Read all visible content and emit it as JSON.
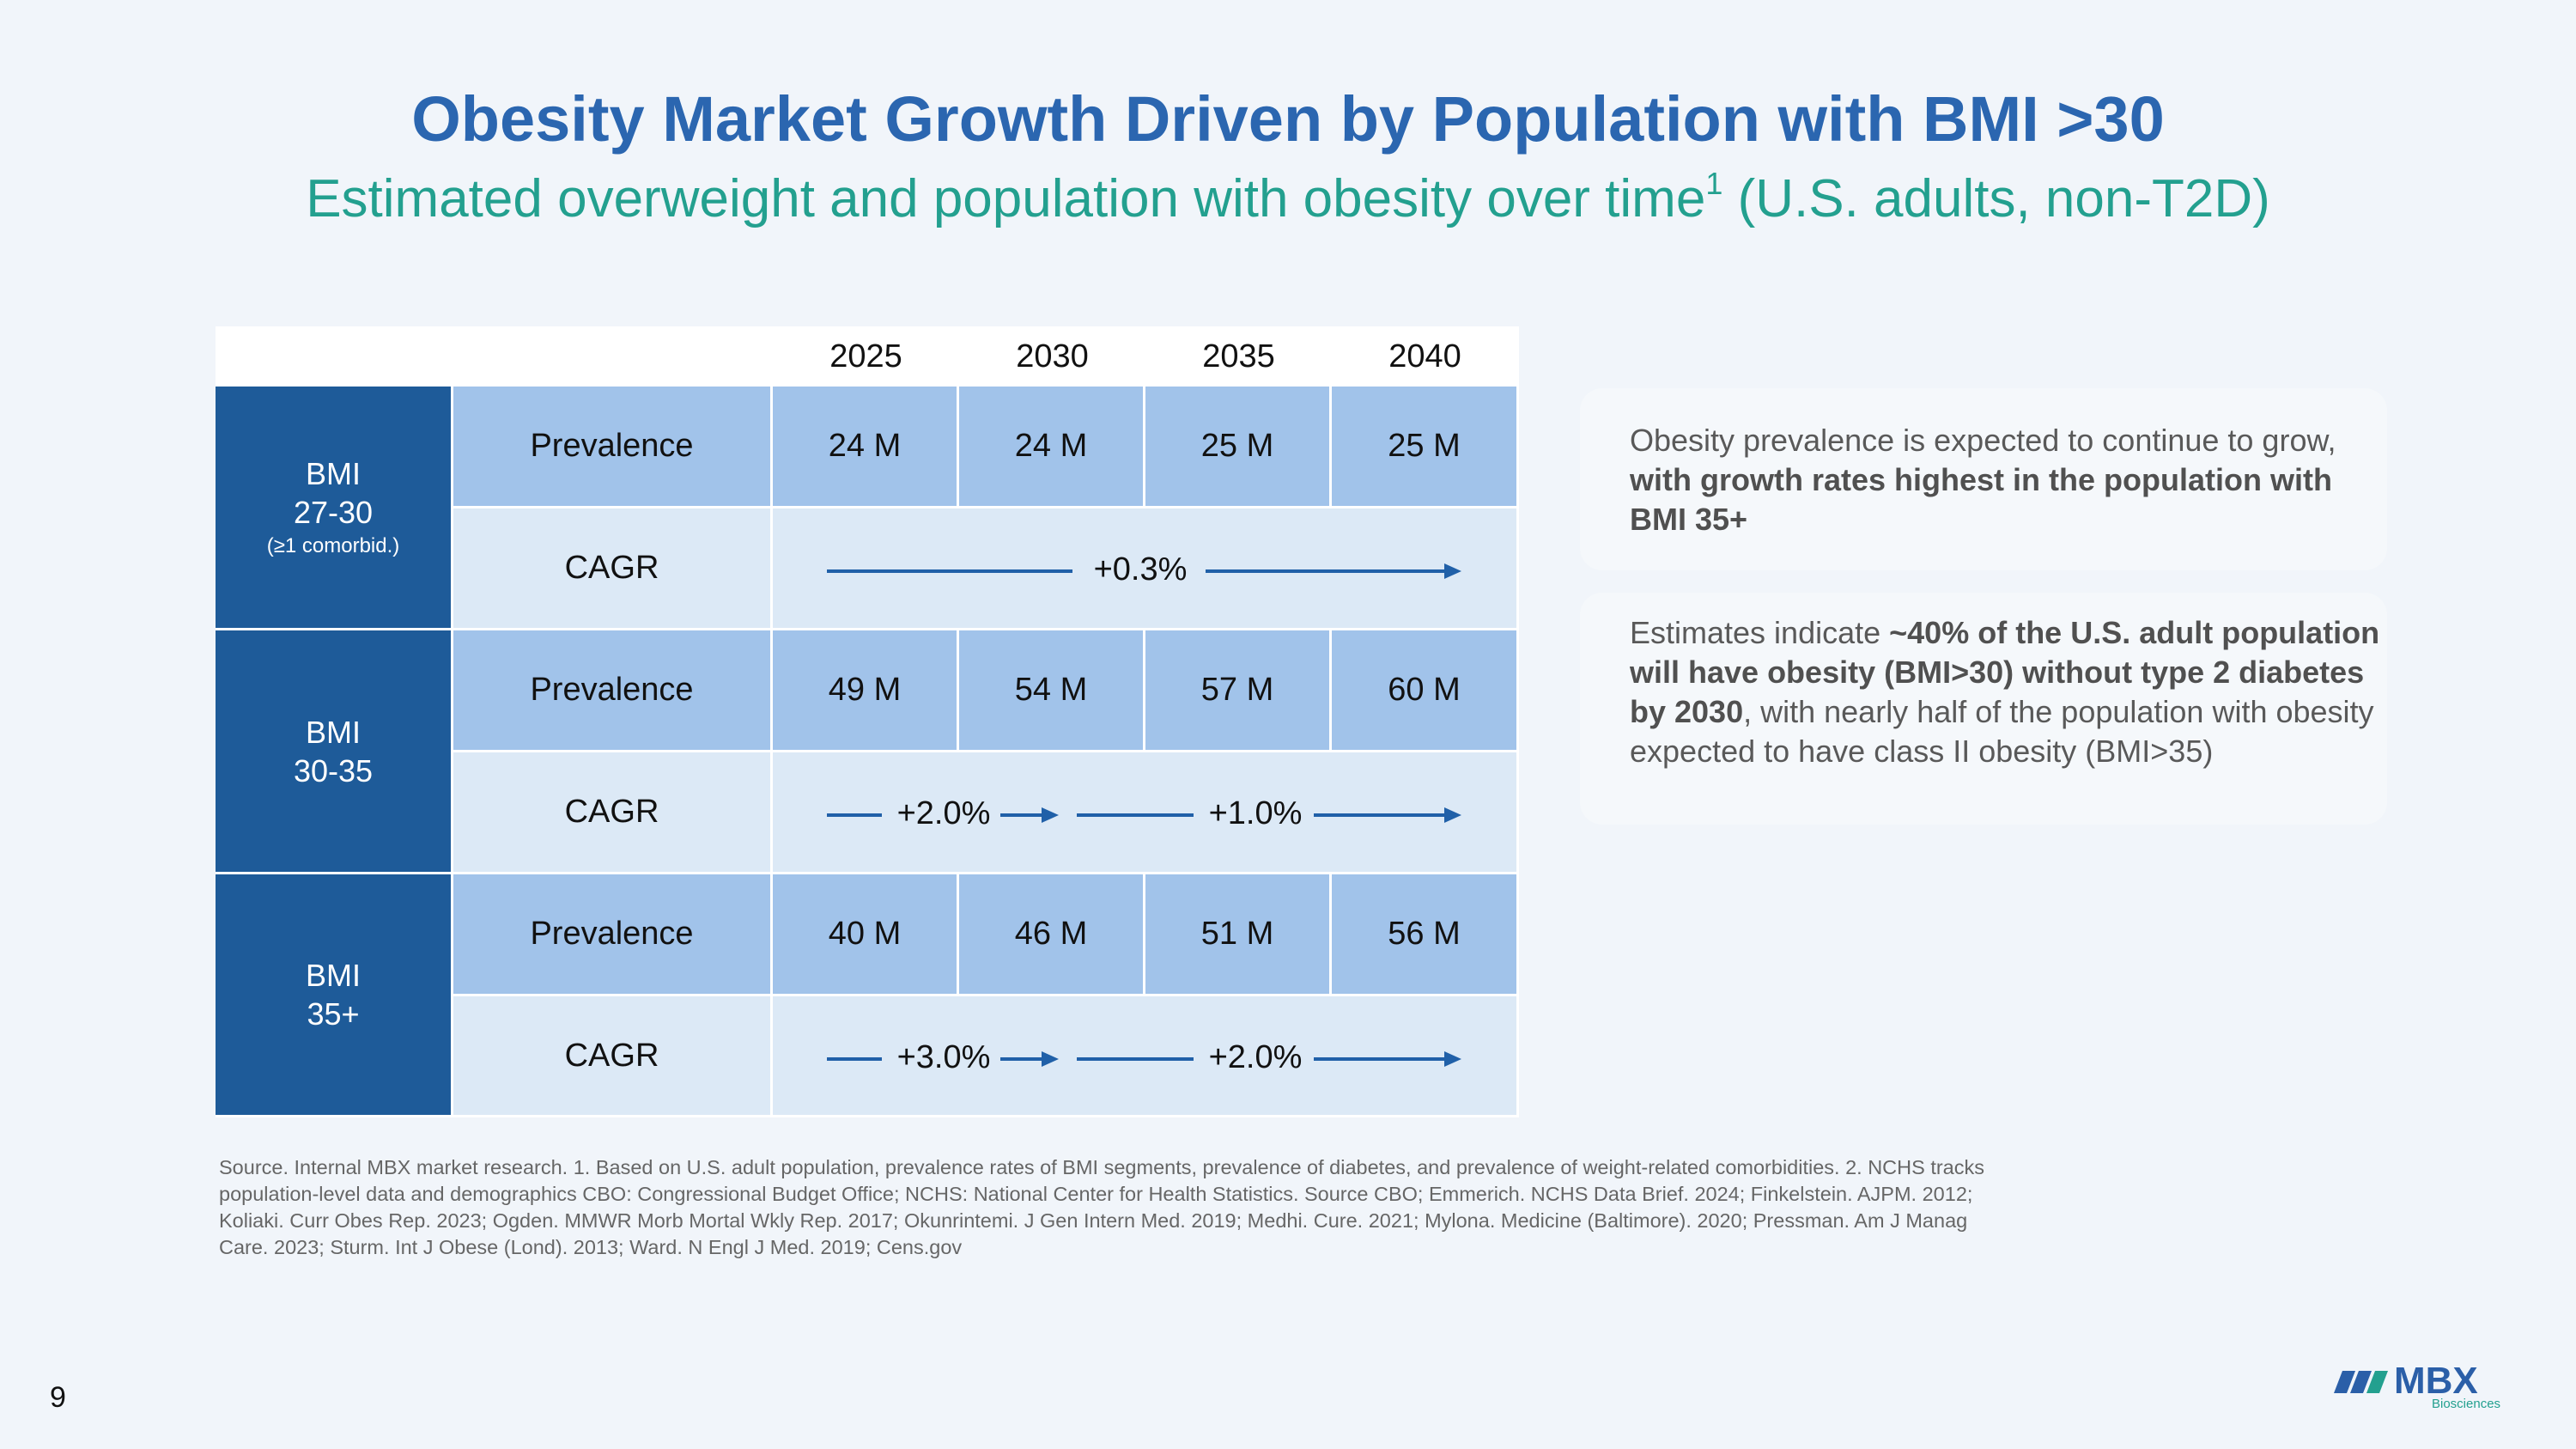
{
  "title": "Obesity Market Growth Driven by Population with BMI >30",
  "subtitle": {
    "main": "Estimated overweight and population with obesity over time",
    "sup": "1",
    "tail": " (U.S. adults, non-T2D)"
  },
  "table": {
    "years": [
      "2025",
      "2030",
      "2035",
      "2040"
    ],
    "groups": [
      {
        "label_line1": "BMI",
        "label_line2": "27-30",
        "label_line3": "(≥1 comorbid.)",
        "prevalence_label": "Prevalence",
        "prevalence": [
          "24 M",
          "24 M",
          "25 M",
          "25 M"
        ],
        "cagr_label": "CAGR",
        "cagr": [
          "+0.3%"
        ]
      },
      {
        "label_line1": "BMI",
        "label_line2": "30-35",
        "prevalence_label": "Prevalence",
        "prevalence": [
          "49 M",
          "54 M",
          "57 M",
          "60 M"
        ],
        "cagr_label": "CAGR",
        "cagr": [
          "+2.0%",
          "+1.0%"
        ]
      },
      {
        "label_line1": "BMI",
        "label_line2": "35+",
        "prevalence_label": "Prevalence",
        "prevalence": [
          "40 M",
          "46 M",
          "51 M",
          "56 M"
        ],
        "cagr_label": "CAGR",
        "cagr": [
          "+3.0%",
          "+2.0%"
        ]
      }
    ]
  },
  "callouts": [
    {
      "t1": "Obesity prevalence is expected to continue to grow, ",
      "b1": "with growth rates highest in the population with BMI 35+"
    },
    {
      "t1": "Estimates indicate ",
      "b1": "~40% of the U.S. adult population will have obesity (BMI>30) without type 2 diabetes by 2030",
      "t2": ", with nearly half of the population with obesity expected to have class II obesity (BMI>35)"
    }
  ],
  "source": "Source. Internal MBX market research. 1. Based on U.S. adult population, prevalence rates of BMI segments, prevalence of diabetes, and prevalence of weight-related comorbidities. 2. NCHS tracks population-level data and demographics  CBO: Congressional Budget Office; NCHS: National Center for Health Statistics. Source CBO; Emmerich. NCHS Data Brief. 2024; Finkelstein. AJPM. 2012; Koliaki. Curr Obes Rep. 2023; Ogden. MMWR Morb Mortal Wkly Rep. 2017;  Okunrintemi. J Gen Intern Med. 2019; Medhi. Cure. 2021; Mylona. Medicine (Baltimore). 2020; Pressman. Am J Manag Care. 2023; Sturm. Int J Obese (Lond). 2013; Ward. N Engl J Med. 2019; Cens.gov",
  "page_number": "9",
  "logo": {
    "wordmark": "MBX",
    "tagline": "Biosciences"
  },
  "colors": {
    "title": "#2b66b0",
    "subtitle": "#23a08f",
    "bmi_cell": "#1e5b99",
    "prevalence_row": "#a1c3ea",
    "cagr_row": "#dce9f6",
    "arrow": "#2060a8"
  }
}
